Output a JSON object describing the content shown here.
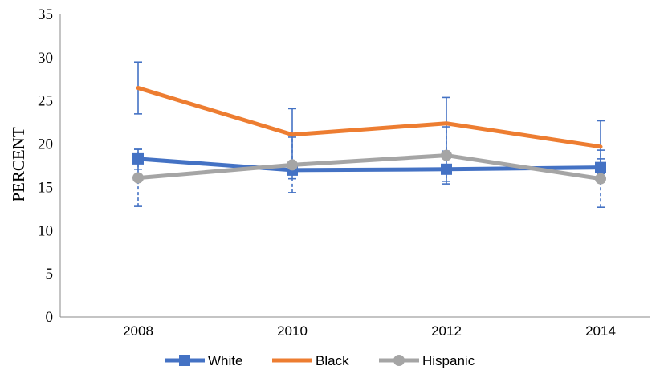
{
  "chart_data": {
    "type": "line",
    "title": "",
    "xlabel": "",
    "ylabel": "PERCENT",
    "categories": [
      "2008",
      "2010",
      "2012",
      "2014"
    ],
    "ylim": [
      0,
      35
    ],
    "yticks": [
      "0",
      "5",
      "10",
      "15",
      "20",
      "25",
      "30",
      "35"
    ],
    "grid": false,
    "legend_position": "bottom",
    "series": [
      {
        "name": "White",
        "color": "#4472C4",
        "marker": "square",
        "values": [
          18.3,
          17.0,
          17.1,
          17.3
        ],
        "error_low": [
          17.1,
          16.0,
          15.7,
          16.3
        ],
        "error_high": [
          19.4,
          18.0,
          18.6,
          18.3
        ]
      },
      {
        "name": "Black",
        "color": "#ED7D31",
        "marker": "none",
        "values": [
          26.5,
          21.1,
          22.4,
          19.7
        ],
        "error_low": [
          23.5,
          18.0,
          19.2,
          16.6
        ],
        "error_high": [
          29.5,
          24.1,
          25.4,
          22.7
        ]
      },
      {
        "name": "Hispanic",
        "color": "#A5A5A5",
        "marker": "circle",
        "values": [
          16.1,
          17.6,
          18.7,
          16.0
        ],
        "error_low": [
          12.8,
          14.4,
          15.4,
          12.7
        ],
        "error_high": [
          19.4,
          20.8,
          22.0,
          19.3
        ]
      }
    ]
  }
}
